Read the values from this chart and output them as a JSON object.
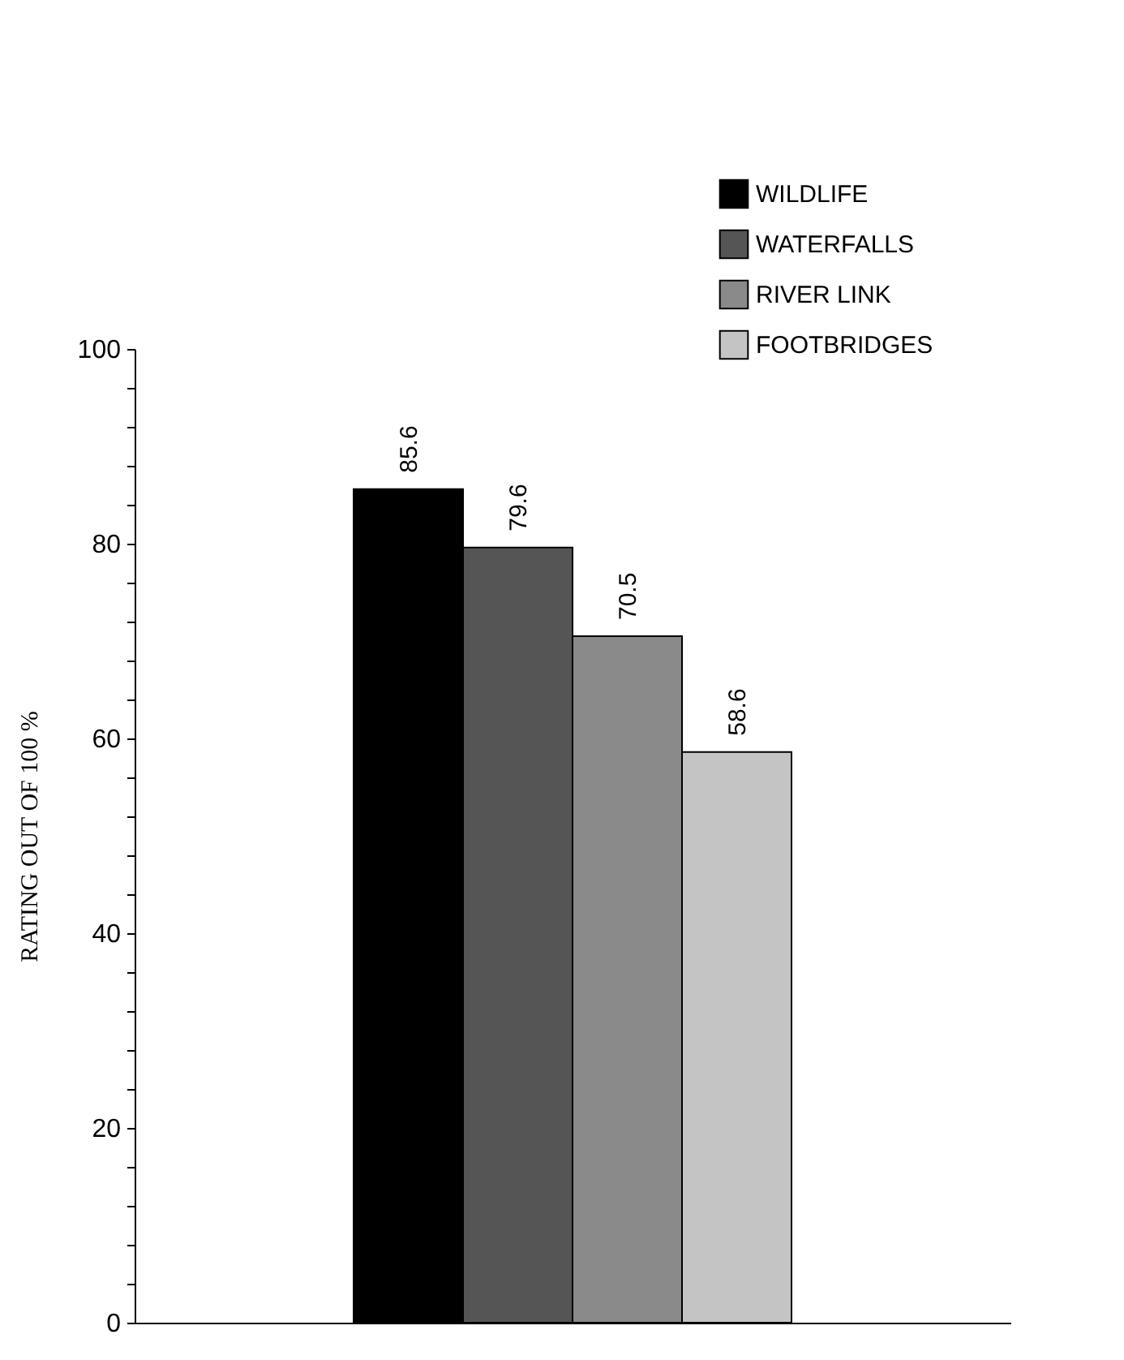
{
  "chart_data": {
    "type": "bar",
    "ylabel": "RATING OUT OF 100 %",
    "categories": [
      null
    ],
    "series": [
      {
        "name": "WILDLIFE",
        "color": "#000000",
        "values": [
          85.6
        ]
      },
      {
        "name": "WATERFALLS",
        "color": "#555555",
        "values": [
          79.6
        ]
      },
      {
        "name": "RIVER LINK",
        "color": "#8a8a8a",
        "values": [
          70.5
        ]
      },
      {
        "name": "FOOTBRIDGES",
        "color": "#c4c4c4",
        "values": [
          58.6
        ]
      }
    ],
    "ylim": [
      0,
      100
    ],
    "yticks": [
      0,
      {
        "value": 4,
        "label": null
      },
      {
        "value": 8,
        "label": null
      },
      {
        "value": 12,
        "label": null
      },
      {
        "value": 16,
        "label": null
      },
      20,
      {
        "value": 24,
        "label": null
      },
      {
        "value": 28,
        "label": null
      },
      {
        "value": 32,
        "label": null
      },
      {
        "value": 36,
        "label": null
      },
      40,
      {
        "value": 44,
        "label": null
      },
      {
        "value": 48,
        "label": null
      },
      {
        "value": 52,
        "label": null
      },
      {
        "value": 56,
        "label": null
      },
      60,
      {
        "value": 64,
        "label": null
      },
      {
        "value": 68,
        "label": null
      },
      {
        "value": 72,
        "label": null
      },
      {
        "value": 76,
        "label": null
      },
      80,
      {
        "value": 84,
        "label": null
      },
      {
        "value": 88,
        "label": null
      },
      {
        "value": 92,
        "label": null
      },
      {
        "value": 96,
        "label": null
      },
      100
    ],
    "data_labels": true,
    "legend": "top right",
    "grid": false,
    "tick_labels": "y"
  }
}
